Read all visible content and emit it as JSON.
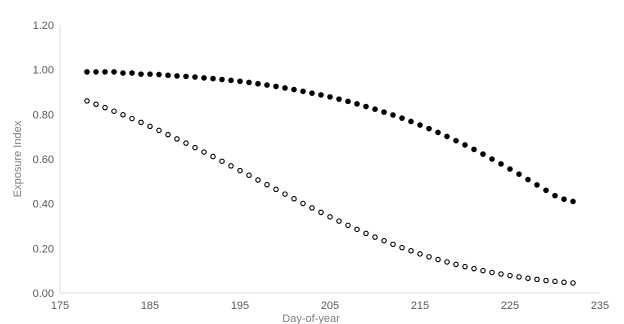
{
  "chart_data": {
    "type": "scatter",
    "xlabel": "Day-of-year",
    "ylabel": "Exposure Index",
    "xlim": [
      175,
      235
    ],
    "ylim": [
      0,
      1.2
    ],
    "x_ticks": [
      "175",
      "185",
      "195",
      "205",
      "215",
      "225",
      "235"
    ],
    "y_ticks": [
      "0.00",
      "0.20",
      "0.40",
      "0.60",
      "0.80",
      "1.00",
      "1.20"
    ],
    "grid": false,
    "legend": "none",
    "series": [
      {
        "marker": "filled",
        "color": "#000000",
        "x": [
          178,
          179,
          180,
          181,
          182,
          183,
          184,
          185,
          186,
          187,
          188,
          189,
          190,
          191,
          192,
          193,
          194,
          195,
          196,
          197,
          198,
          199,
          200,
          201,
          202,
          203,
          204,
          205,
          206,
          207,
          208,
          209,
          210,
          211,
          212,
          213,
          214,
          215,
          216,
          217,
          218,
          219,
          220,
          221,
          222,
          223,
          224,
          225,
          226,
          227,
          228,
          229,
          230,
          231,
          232
        ],
        "y": [
          0.99,
          0.99,
          0.99,
          0.99,
          0.985,
          0.985,
          0.98,
          0.98,
          0.978,
          0.975,
          0.972,
          0.97,
          0.967,
          0.963,
          0.96,
          0.956,
          0.952,
          0.948,
          0.943,
          0.937,
          0.931,
          0.925,
          0.918,
          0.911,
          0.903,
          0.895,
          0.887,
          0.878,
          0.868,
          0.858,
          0.847,
          0.835,
          0.823,
          0.81,
          0.797,
          0.783,
          0.768,
          0.752,
          0.736,
          0.719,
          0.701,
          0.682,
          0.663,
          0.643,
          0.622,
          0.6,
          0.578,
          0.555,
          0.532,
          0.508,
          0.484,
          0.46,
          0.436,
          0.42,
          0.41
        ]
      },
      {
        "marker": "hollow",
        "color": "#000000",
        "x": [
          178,
          179,
          180,
          181,
          182,
          183,
          184,
          185,
          186,
          187,
          188,
          189,
          190,
          191,
          192,
          193,
          194,
          195,
          196,
          197,
          198,
          199,
          200,
          201,
          202,
          203,
          204,
          205,
          206,
          207,
          208,
          209,
          210,
          211,
          212,
          213,
          214,
          215,
          216,
          217,
          218,
          219,
          220,
          221,
          222,
          223,
          224,
          225,
          226,
          227,
          228,
          229,
          230,
          231,
          232
        ],
        "y": [
          0.86,
          0.845,
          0.83,
          0.814,
          0.798,
          0.781,
          0.764,
          0.746,
          0.728,
          0.709,
          0.69,
          0.671,
          0.651,
          0.631,
          0.611,
          0.59,
          0.569,
          0.548,
          0.527,
          0.506,
          0.485,
          0.464,
          0.443,
          0.422,
          0.401,
          0.381,
          0.361,
          0.341,
          0.322,
          0.303,
          0.285,
          0.267,
          0.25,
          0.234,
          0.218,
          0.203,
          0.189,
          0.175,
          0.162,
          0.15,
          0.139,
          0.128,
          0.118,
          0.109,
          0.1,
          0.092,
          0.085,
          0.078,
          0.072,
          0.066,
          0.061,
          0.056,
          0.052,
          0.048,
          0.045
        ]
      }
    ]
  }
}
